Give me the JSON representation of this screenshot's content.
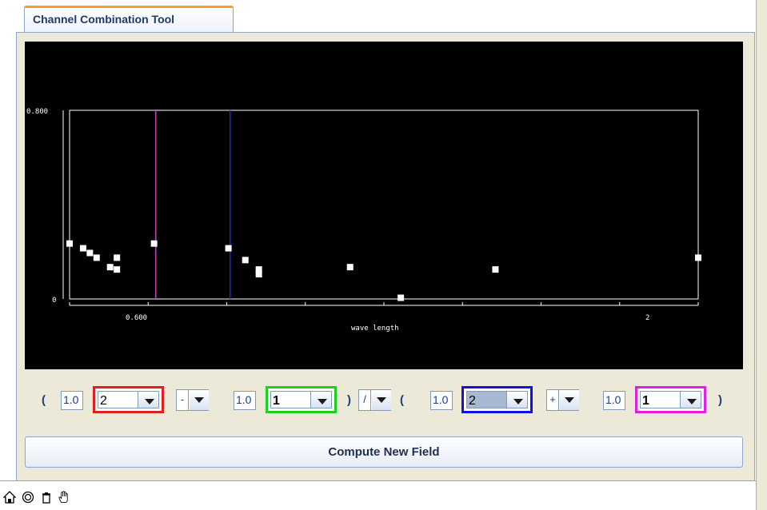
{
  "tab": {
    "title": "Channel Combination Tool"
  },
  "chart_data": {
    "type": "scatter",
    "xlabel": "wave length",
    "ylabel": "",
    "x_tick_labels": [
      "0.600",
      "2"
    ],
    "y_tick_labels": [
      "0.800",
      "0"
    ],
    "xlim": [
      0.34,
      2.2
    ],
    "ylim": [
      0,
      0.8
    ],
    "points": [
      {
        "x": 0.34,
        "y": 0.235
      },
      {
        "x": 0.38,
        "y": 0.215
      },
      {
        "x": 0.4,
        "y": 0.195
      },
      {
        "x": 0.42,
        "y": 0.175
      },
      {
        "x": 0.46,
        "y": 0.135
      },
      {
        "x": 0.48,
        "y": 0.125
      },
      {
        "x": 0.48,
        "y": 0.175
      },
      {
        "x": 0.59,
        "y": 0.235
      },
      {
        "x": 0.81,
        "y": 0.215
      },
      {
        "x": 0.86,
        "y": 0.165
      },
      {
        "x": 0.9,
        "y": 0.105
      },
      {
        "x": 0.9,
        "y": 0.125
      },
      {
        "x": 1.17,
        "y": 0.135
      },
      {
        "x": 1.32,
        "y": 0.005
      },
      {
        "x": 1.6,
        "y": 0.125
      },
      {
        "x": 2.2,
        "y": 0.175
      }
    ],
    "vertical_lines": [
      {
        "x": 0.595,
        "color": "#c040c0"
      },
      {
        "x": 0.815,
        "color": "#2020e0"
      }
    ],
    "grid": false
  },
  "formula": {
    "open_paren_1": "(",
    "coef_a": "1.0",
    "channel_a": "2",
    "op_1": "-",
    "coef_b": "1.0",
    "channel_b": "1",
    "close_paren_1": ")",
    "op_2": "/",
    "open_paren_2": "(",
    "coef_c": "1.0",
    "channel_c": "2",
    "op_3": "+",
    "coef_d": "1.0",
    "channel_d": "1",
    "close_paren_2": ")",
    "colors": {
      "a": "#e02020",
      "b": "#20d020",
      "c": "#1010e0",
      "d": "#e020e0"
    }
  },
  "compute_button": {
    "label": "Compute New Field"
  },
  "toolbar": {
    "icons": [
      "home-icon",
      "reset-icon",
      "trash-icon",
      "hand-icon"
    ]
  }
}
